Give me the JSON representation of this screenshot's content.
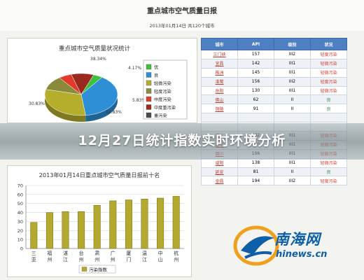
{
  "header": {
    "title": "重点城市空气质量日报",
    "subtitle": "2013年01月14日    共120个城市"
  },
  "pie_chart": {
    "chart_data": {
      "type": "pie",
      "title": "重点城市空气质量状况统计",
      "slices": [
        {
          "label": "优",
          "value": 4.17,
          "color": "#3fbf3f",
          "data_label": "4.17%"
        },
        {
          "label": "良",
          "value": 38.34,
          "color": "#2e8fd6",
          "data_label": "38.34%"
        },
        {
          "label": "轻微污染",
          "value": 30.83,
          "color": "#b5ae2c",
          "data_label": "30.83%"
        },
        {
          "label": "轻度污染",
          "value": 10.83,
          "color": "#8b8a3a",
          "data_label": "10.83%"
        },
        {
          "label": "中度污染",
          "value": 5.83,
          "color": "#e23a2a",
          "data_label": "5.83%"
        },
        {
          "label": "中度重污染",
          "value": 10.0,
          "color": "#9b2a1e",
          "data_label": ""
        },
        {
          "label": "重污染",
          "value": 0.0,
          "color": "#4a4a4a",
          "data_label": ""
        }
      ]
    }
  },
  "bar_chart": {
    "chart_data": {
      "type": "bar",
      "title": "2013年01月14日重点城市空气质量日报前十名",
      "categories": [
        "三\n亚",
        "福\n州",
        "湛\n江",
        "台\n州",
        "肃\n州",
        "广\n州",
        "厦\n门",
        "温\n江",
        "中\n山",
        "杭\n州"
      ],
      "values": [
        29,
        40,
        41,
        41,
        48,
        53,
        54,
        55,
        56,
        58
      ],
      "ylim": [
        0,
        70
      ],
      "yticks": [
        0,
        10,
        20,
        30,
        40,
        50,
        60,
        70
      ],
      "legend": "污染指数",
      "bar_color": "#b3a92e"
    }
  },
  "table": {
    "headers": [
      "城市",
      "API",
      "级别",
      "状况"
    ],
    "rows": [
      [
        "三门峡",
        "157",
        "III2",
        "轻度污染"
      ],
      [
        "宜昌",
        "142",
        "III1",
        "轻微污染"
      ],
      [
        "株洲",
        "145",
        "III1",
        "轻微污染"
      ],
      [
        "淮鹭",
        "156",
        "III2",
        "轻度污染"
      ],
      [
        "岳阳",
        "130",
        "III1",
        "轻微污染"
      ],
      [
        "佛山",
        "62",
        "II",
        "良"
      ],
      [
        "铜陵",
        "91",
        "II",
        "良"
      ],
      [
        "",
        "",
        "",
        ""
      ],
      [
        "",
        "",
        "",
        ""
      ],
      [
        "遵义",
        "142",
        "III1",
        "轻微污染"
      ],
      [
        "遂宁",
        "110",
        "III1",
        "轻微污染"
      ],
      [
        "铜川",
        "106",
        "III1",
        "轻微污染"
      ],
      [
        "咸阳",
        "138",
        "III1",
        "轻微污染"
      ],
      [
        "延安",
        "81",
        "II",
        "良"
      ],
      [
        "金昌",
        "194",
        "III2",
        "轻度污染"
      ]
    ]
  },
  "banner": {
    "title": "12月27日统计指数实时环境分析"
  },
  "watermark": {
    "name": "南海网",
    "url": "hinews.cn",
    "accent": "#0d5fa8"
  }
}
